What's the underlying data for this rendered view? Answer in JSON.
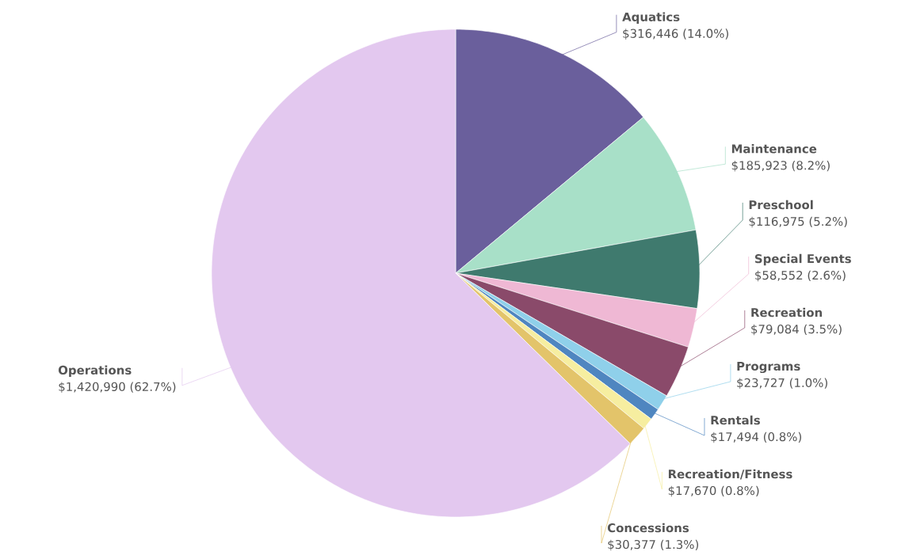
{
  "chart_data": {
    "type": "pie",
    "categories": [
      "Aquatics",
      "Maintenance",
      "Preschool",
      "Special Events",
      "Recreation",
      "Programs",
      "Rentals",
      "Recreation/Fitness",
      "Concessions",
      "Operations"
    ],
    "values": [
      316446,
      185923,
      116975,
      58552,
      79084,
      23727,
      17494,
      17670,
      30377,
      1420990
    ],
    "value_labels": [
      "$316,446 (14.0%)",
      "$185,923 (8.2%)",
      "$116,975 (5.2%)",
      "$58,552 (2.6%)",
      "$79,084 (3.5%)",
      "$23,727 (1.0%)",
      "$17,494 (0.8%)",
      "$17,670 (0.8%)",
      "$30,377 (1.3%)",
      "$1,420,990 (62.7%)"
    ],
    "colors": [
      "#6a5f9c",
      "#a8e0c8",
      "#3f7a6e",
      "#efb8d4",
      "#8a4a6a",
      "#8fd0ea",
      "#4f86c0",
      "#f6eea0",
      "#e3c46a",
      "#e3c8ef"
    ]
  }
}
